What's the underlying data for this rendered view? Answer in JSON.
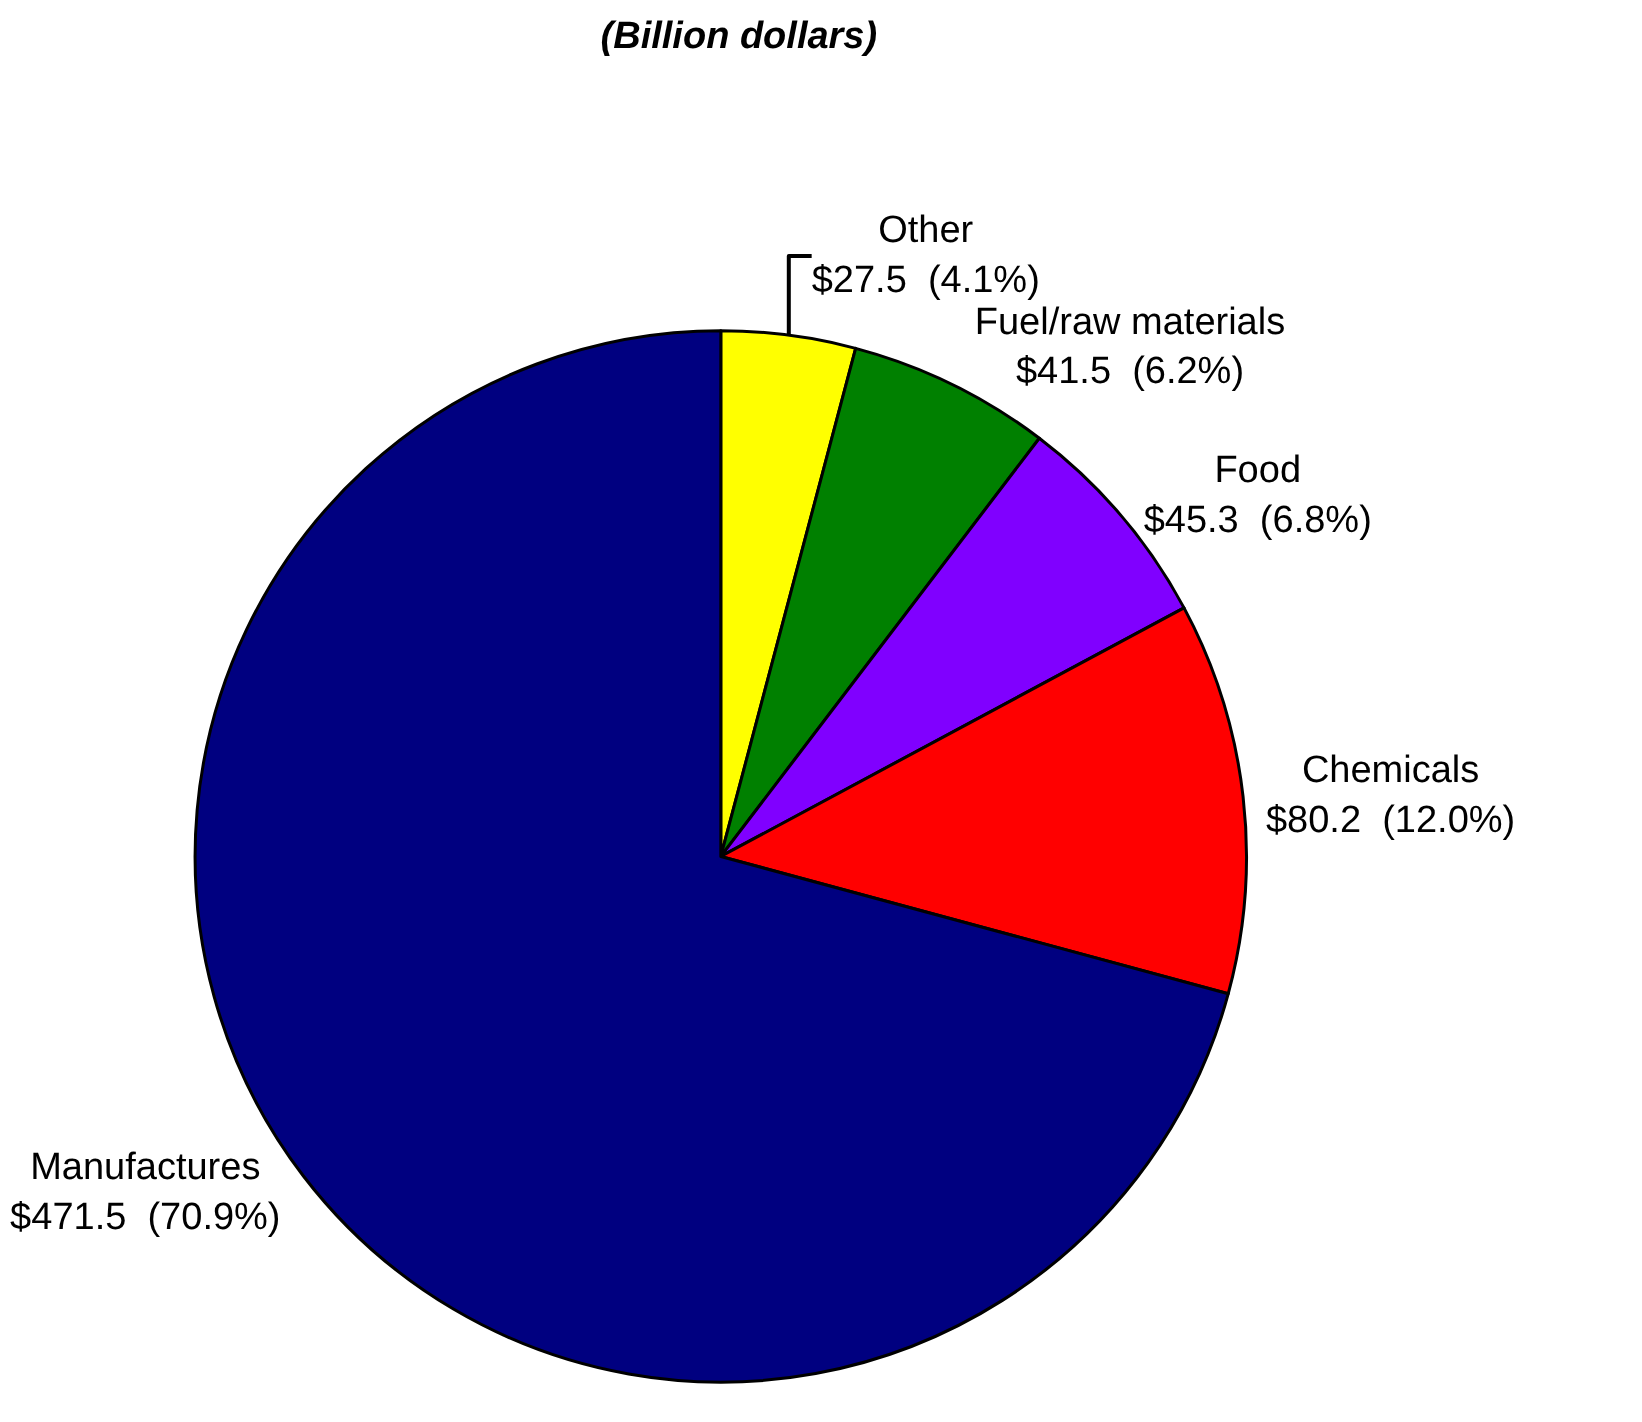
{
  "chart_data": {
    "type": "pie",
    "title": "(Billion dollars)",
    "categories": [
      "Other",
      "Fuel/raw materials",
      "Food",
      "Chemicals",
      "Manufactures"
    ],
    "values": [
      27.5,
      41.5,
      45.3,
      80.2,
      471.5
    ],
    "value_labels": [
      "$27.5  (4.1%)",
      "$41.5  (6.2%)",
      "$45.3  (6.8%)",
      "$80.2  (12.0%)",
      "$471.5  (70.9%)"
    ],
    "colors": [
      "#ffff00",
      "#008000",
      "#8000ff",
      "#ff0000",
      "#000080"
    ],
    "legend": false
  }
}
